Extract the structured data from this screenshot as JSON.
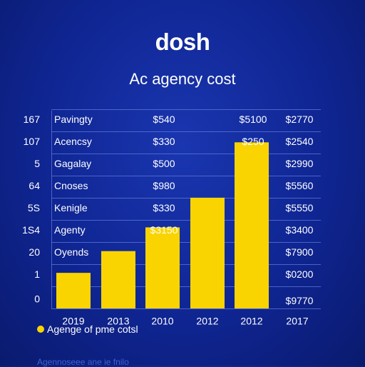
{
  "brand": "dosh",
  "chart_data": {
    "type": "bar",
    "title": "Ac agency cost",
    "xlabel": "",
    "ylabel": "",
    "grid": true,
    "categories": [
      "2019",
      "2013",
      "2010",
      "2012",
      "2012"
    ],
    "extra_x_label": "2017",
    "values": [
      0.18,
      0.29,
      0.41,
      0.56,
      0.84
    ],
    "ylim": [
      0,
      1
    ],
    "row_ticks": [
      "0",
      "1",
      "20",
      "1S4",
      "5S",
      "64",
      "5",
      "107",
      "167"
    ],
    "row_labels": [
      "Oyends",
      "Agenty",
      "Kenigle",
      "Cnoses",
      "Gagalay",
      "Acencsy",
      "Pavingty"
    ],
    "col1_values": [
      "$3150",
      "$330",
      "$980",
      "$500",
      "$330",
      "$540"
    ],
    "col2_values": [
      "$250",
      "$5100"
    ],
    "right_values": [
      "$9770",
      "$0200",
      "$7900",
      "$3400",
      "$5550",
      "$5560",
      "$2990",
      "$2540",
      "$2770"
    ],
    "legend": [
      {
        "label": "Agenge of pme cotsl",
        "color": "#f9d400"
      }
    ],
    "legend_secondary": "Agennoseee ane ie fnilo"
  }
}
